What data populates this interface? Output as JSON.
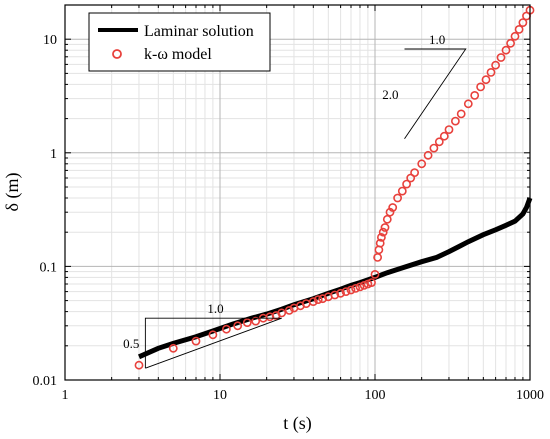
{
  "chart_data": {
    "type": "line",
    "title": "",
    "xlabel": "t (s)",
    "ylabel": "δ (m)",
    "x_scale": "log",
    "y_scale": "log",
    "xlim": [
      1,
      1000
    ],
    "ylim": [
      0.01,
      20
    ],
    "grid": true,
    "x_ticks": [
      {
        "value": 1,
        "label": "1"
      },
      {
        "value": 10,
        "label": "10"
      },
      {
        "value": 100,
        "label": "100"
      },
      {
        "value": 1000,
        "label": "1000"
      }
    ],
    "y_ticks": [
      {
        "value": 0.01,
        "label": "0.01"
      },
      {
        "value": 0.1,
        "label": "0.1"
      },
      {
        "value": 1,
        "label": "1"
      },
      {
        "value": 10,
        "label": "10"
      }
    ],
    "legend": {
      "position": "top-left",
      "entries": [
        {
          "label": "Laminar solution",
          "style": "line",
          "color": "#000000"
        },
        {
          "label": "k-ω model",
          "style": "open-circle",
          "color": "#e8413c"
        }
      ]
    },
    "series": [
      {
        "name": "Laminar solution",
        "style": "line",
        "color": "#000000",
        "x": [
          3,
          4,
          5,
          7,
          9,
          12,
          16,
          20,
          25,
          30,
          40,
          50,
          60,
          70,
          80,
          90,
          100,
          120,
          150,
          200,
          250,
          300,
          350,
          400,
          500,
          600,
          700,
          800,
          900,
          950,
          1000
        ],
        "y": [
          0.016,
          0.019,
          0.021,
          0.024,
          0.027,
          0.031,
          0.035,
          0.038,
          0.042,
          0.046,
          0.052,
          0.058,
          0.063,
          0.068,
          0.072,
          0.076,
          0.08,
          0.088,
          0.097,
          0.11,
          0.12,
          0.135,
          0.15,
          0.165,
          0.19,
          0.21,
          0.23,
          0.25,
          0.29,
          0.33,
          0.4
        ]
      },
      {
        "name": "k-ω model",
        "style": "open-circle",
        "color": "#e8413c",
        "x": [
          3,
          5,
          7,
          9,
          11,
          13,
          15,
          17,
          19,
          21,
          23,
          25,
          28,
          30,
          33,
          36,
          40,
          43,
          46,
          50,
          55,
          60,
          65,
          70,
          75,
          80,
          85,
          90,
          95,
          100,
          104,
          106,
          108,
          110,
          113,
          116,
          120,
          125,
          130,
          140,
          150,
          160,
          170,
          180,
          200,
          220,
          240,
          260,
          280,
          300,
          330,
          360,
          400,
          440,
          480,
          520,
          560,
          600,
          650,
          700,
          750,
          800,
          850,
          900,
          950,
          1000
        ],
        "y": [
          0.0135,
          0.019,
          0.022,
          0.025,
          0.028,
          0.03,
          0.032,
          0.033,
          0.035,
          0.036,
          0.037,
          0.039,
          0.041,
          0.043,
          0.045,
          0.047,
          0.049,
          0.051,
          0.052,
          0.054,
          0.056,
          0.058,
          0.06,
          0.062,
          0.064,
          0.066,
          0.068,
          0.07,
          0.072,
          0.085,
          0.12,
          0.14,
          0.16,
          0.18,
          0.2,
          0.22,
          0.26,
          0.3,
          0.33,
          0.4,
          0.46,
          0.53,
          0.6,
          0.67,
          0.8,
          0.95,
          1.1,
          1.25,
          1.4,
          1.6,
          1.9,
          2.2,
          2.7,
          3.2,
          3.8,
          4.4,
          5.1,
          5.9,
          6.9,
          8.0,
          9.2,
          10.6,
          12.2,
          14.0,
          16.0,
          18.0
        ]
      }
    ],
    "annotations": [
      {
        "type": "slope-triangle",
        "run_label": "1.0",
        "rise_label": "0.5",
        "run_from_x": 3.3,
        "run_to_x": 25,
        "base_y": 0.035
      },
      {
        "type": "slope-triangle",
        "run_label": "1.0",
        "rise_label": "2.0",
        "run_from_x": 155,
        "run_to_x": 385,
        "top_y": 8.2
      }
    ]
  }
}
